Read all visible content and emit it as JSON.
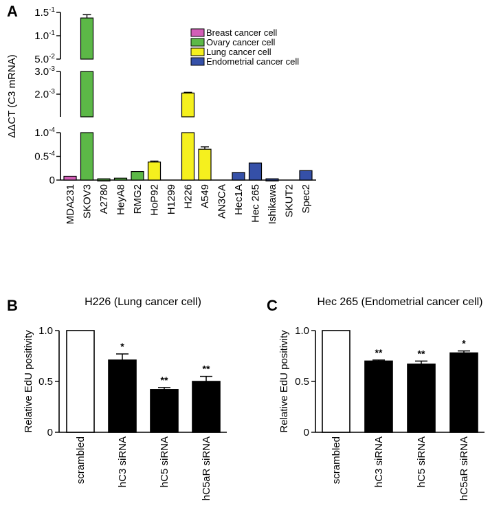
{
  "panels": {
    "a": {
      "letter": "A"
    },
    "b": {
      "letter": "B"
    },
    "c": {
      "letter": "C"
    }
  },
  "chart_data": [
    {
      "panel": "A",
      "type": "bar",
      "ylabel": "ΔΔCT (C3 mRNA)",
      "y_scale": "broken",
      "segments": [
        {
          "range": [
            0,
            0.0001
          ],
          "ticks": [
            {
              "value": 0,
              "label": "0"
            },
            {
              "value": 5e-05,
              "label": "0.5-4"
            },
            {
              "value": 0.0001,
              "label": "1.0-4"
            }
          ]
        },
        {
          "range": [
            0.001,
            0.003
          ],
          "ticks": [
            {
              "value": 0.002,
              "label": "2.0-3"
            },
            {
              "value": 0.003,
              "label": "3.0-3"
            }
          ]
        },
        {
          "range": [
            0.05,
            0.15
          ],
          "ticks": [
            {
              "value": 0.05,
              "label": "5.0-2"
            },
            {
              "value": 0.1,
              "label": "1.0-1"
            },
            {
              "value": 0.15,
              "label": "1.5-1"
            }
          ]
        }
      ],
      "categories": [
        "MDA231",
        "SKOV3",
        "A2780",
        "HeyA8",
        "RMG2",
        "HoP92",
        "H1299",
        "H226",
        "A549",
        "AN3CA",
        "Hec1A",
        "Hec 265",
        "Ishikawa",
        "SKUT2",
        "Spec2"
      ],
      "values": [
        8e-06,
        0.138,
        1e-06,
        4e-06,
        1.8e-05,
        3.8e-05,
        0,
        0.00205,
        6.5e-05,
        0,
        1.6e-05,
        3.6e-05,
        1e-06,
        0,
        2e-05
      ],
      "errors": [
        0,
        0.007,
        0,
        0,
        0,
        2e-06,
        0,
        3e-05,
        5e-06,
        0,
        0,
        0,
        0,
        0,
        0
      ],
      "groups": [
        "Breast cancer cell",
        "Ovary cancer cell",
        "Ovary cancer cell",
        "Ovary cancer cell",
        "Ovary cancer cell",
        "Lung cancer cell",
        "Lung cancer cell",
        "Lung cancer cell",
        "Lung cancer cell",
        "Endometrial cancer cell",
        "Endometrial cancer cell",
        "Endometrial cancer cell",
        "Endometrial cancer cell",
        "Endometrial cancer cell",
        "Endometrial cancer cell"
      ],
      "legend": [
        {
          "label": "Breast cancer cell",
          "color": "#d35fb7"
        },
        {
          "label": "Ovary cancer cell",
          "color": "#5cb847"
        },
        {
          "label": "Lung cancer cell",
          "color": "#f5f01e"
        },
        {
          "label": "Endometrial cancer cell",
          "color": "#3550a8"
        }
      ],
      "legend_position": "top-right"
    },
    {
      "panel": "B",
      "type": "bar",
      "title": "H226 (Lung cancer cell)",
      "ylabel": "Relative EdU positivity",
      "ylim": [
        0,
        1.0
      ],
      "yticks": [
        0,
        0.5,
        1.0
      ],
      "ytick_labels": [
        "0",
        "0.5",
        "1.0"
      ],
      "categories": [
        "scrambled",
        "hC3 siRNA",
        "hC5 siRNA",
        "hC5aR siRNA"
      ],
      "values": [
        1.0,
        0.71,
        0.42,
        0.5
      ],
      "errors": [
        0,
        0.06,
        0.02,
        0.05
      ],
      "significance": [
        "",
        "*",
        "**",
        "**"
      ],
      "colors": [
        "#ffffff",
        "#000000",
        "#000000",
        "#000000"
      ]
    },
    {
      "panel": "C",
      "type": "bar",
      "title": "Hec 265 (Endometrial cancer cell)",
      "ylabel": "Relative EdU positivity",
      "ylim": [
        0,
        1.0
      ],
      "yticks": [
        0,
        0.5,
        1.0
      ],
      "ytick_labels": [
        "0",
        "0.5",
        "1.0"
      ],
      "categories": [
        "scrambled",
        "hC3 siRNA",
        "hC5 siRNA",
        "hC5aR siRNA"
      ],
      "values": [
        1.0,
        0.7,
        0.67,
        0.78
      ],
      "errors": [
        0,
        0.01,
        0.03,
        0.02
      ],
      "significance": [
        "",
        "**",
        "**",
        "*"
      ],
      "colors": [
        "#ffffff",
        "#000000",
        "#000000",
        "#000000"
      ]
    }
  ]
}
